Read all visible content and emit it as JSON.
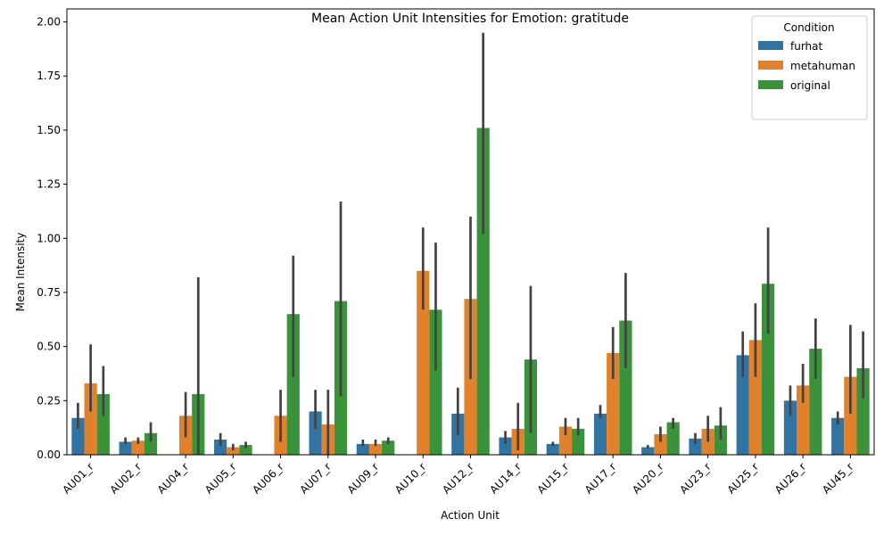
{
  "colors": {
    "furhat": "#3274a1",
    "metahuman": "#e1812c",
    "original": "#3a923a",
    "errorbar": "#424242"
  },
  "chart_data": {
    "type": "bar",
    "title": "Mean Action Unit Intensities for Emotion: gratitude",
    "xlabel": "Action Unit",
    "ylabel": "Mean Intensity",
    "ylim": [
      0,
      2.06
    ],
    "yticks": [
      "0.00",
      "0.25",
      "0.50",
      "0.75",
      "1.00",
      "1.25",
      "1.50",
      "1.75",
      "2.00"
    ],
    "legend": {
      "title": "Condition",
      "position": "top-right"
    },
    "categories": [
      "AU01_r",
      "AU02_r",
      "AU04_r",
      "AU05_r",
      "AU06_r",
      "AU07_r",
      "AU09_r",
      "AU10_r",
      "AU12_r",
      "AU14_r",
      "AU15_r",
      "AU17_r",
      "AU20_r",
      "AU23_r",
      "AU25_r",
      "AU26_r",
      "AU45_r"
    ],
    "series": [
      {
        "name": "furhat",
        "values": [
          0.17,
          0.06,
          0.0,
          0.07,
          0.0,
          0.2,
          0.05,
          0.0,
          0.19,
          0.08,
          0.05,
          0.19,
          0.035,
          0.075,
          0.46,
          0.25,
          0.17
        ],
        "err_low": [
          0.12,
          0.05,
          0.0,
          0.04,
          0.0,
          0.12,
          0.04,
          0.0,
          0.09,
          0.05,
          0.04,
          0.17,
          0.03,
          0.05,
          0.36,
          0.18,
          0.14
        ],
        "err_high": [
          0.24,
          0.08,
          0.0,
          0.1,
          0.0,
          0.3,
          0.07,
          0.0,
          0.31,
          0.11,
          0.06,
          0.23,
          0.045,
          0.1,
          0.57,
          0.32,
          0.2
        ]
      },
      {
        "name": "metahuman",
        "values": [
          0.33,
          0.065,
          0.18,
          0.035,
          0.18,
          0.14,
          0.05,
          0.85,
          0.72,
          0.12,
          0.13,
          0.47,
          0.095,
          0.12,
          0.53,
          0.32,
          0.36
        ],
        "err_low": [
          0.2,
          0.05,
          0.08,
          0.02,
          0.06,
          0.0,
          0.04,
          0.67,
          0.35,
          0.02,
          0.09,
          0.35,
          0.06,
          0.06,
          0.36,
          0.24,
          0.19
        ],
        "err_high": [
          0.51,
          0.08,
          0.29,
          0.05,
          0.3,
          0.3,
          0.07,
          1.05,
          1.1,
          0.24,
          0.17,
          0.59,
          0.13,
          0.18,
          0.7,
          0.42,
          0.6
        ]
      },
      {
        "name": "original",
        "values": [
          0.28,
          0.1,
          0.28,
          0.045,
          0.65,
          0.71,
          0.065,
          0.67,
          1.51,
          0.44,
          0.12,
          0.62,
          0.15,
          0.135,
          0.79,
          0.49,
          0.4
        ],
        "err_low": [
          0.18,
          0.06,
          0.0,
          0.03,
          0.36,
          0.27,
          0.05,
          0.39,
          1.02,
          0.1,
          0.09,
          0.4,
          0.12,
          0.07,
          0.56,
          0.35,
          0.26
        ],
        "err_high": [
          0.41,
          0.15,
          0.82,
          0.06,
          0.92,
          1.17,
          0.08,
          0.98,
          1.95,
          0.78,
          0.17,
          0.84,
          0.17,
          0.22,
          1.05,
          0.63,
          0.57
        ]
      }
    ]
  }
}
